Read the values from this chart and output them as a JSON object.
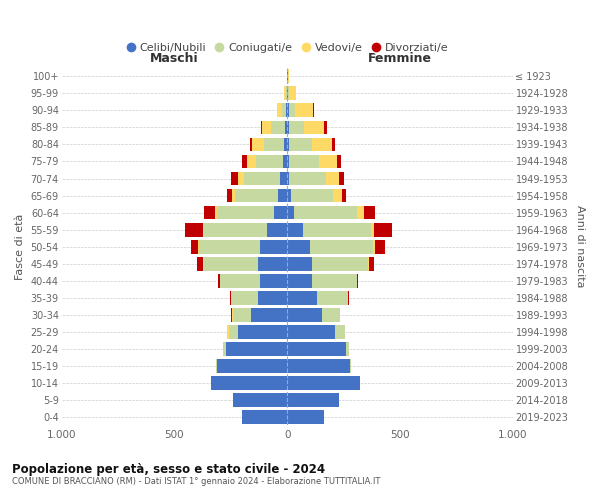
{
  "age_groups": [
    "0-4",
    "5-9",
    "10-14",
    "15-19",
    "20-24",
    "25-29",
    "30-34",
    "35-39",
    "40-44",
    "45-49",
    "50-54",
    "55-59",
    "60-64",
    "65-69",
    "70-74",
    "75-79",
    "80-84",
    "85-89",
    "90-94",
    "95-99",
    "100+"
  ],
  "birth_years": [
    "2019-2023",
    "2014-2018",
    "2009-2013",
    "2004-2008",
    "1999-2003",
    "1994-1998",
    "1989-1993",
    "1984-1988",
    "1979-1983",
    "1974-1978",
    "1969-1973",
    "1964-1968",
    "1959-1963",
    "1954-1958",
    "1949-1953",
    "1944-1948",
    "1939-1943",
    "1934-1938",
    "1929-1933",
    "1924-1928",
    "≤ 1923"
  ],
  "colors": {
    "celibi": "#4472C4",
    "coniugati": "#c5d9a0",
    "vedovi": "#FFD966",
    "divorziati": "#C00000"
  },
  "males": {
    "celibi": [
      200,
      240,
      340,
      310,
      270,
      220,
      160,
      130,
      120,
      130,
      120,
      90,
      60,
      40,
      30,
      20,
      15,
      10,
      5,
      2,
      0
    ],
    "coniugati": [
      0,
      0,
      0,
      5,
      15,
      40,
      80,
      120,
      180,
      240,
      270,
      280,
      250,
      190,
      160,
      120,
      90,
      60,
      20,
      5,
      0
    ],
    "vedovi": [
      0,
      0,
      0,
      0,
      0,
      5,
      5,
      0,
      0,
      5,
      5,
      5,
      10,
      15,
      30,
      40,
      50,
      40,
      20,
      5,
      0
    ],
    "divorziati": [
      0,
      0,
      0,
      0,
      0,
      0,
      5,
      5,
      5,
      25,
      30,
      80,
      50,
      20,
      30,
      20,
      10,
      5,
      0,
      0,
      0
    ]
  },
  "females": {
    "celibi": [
      165,
      230,
      325,
      280,
      260,
      210,
      155,
      130,
      110,
      110,
      100,
      70,
      30,
      15,
      10,
      10,
      10,
      10,
      10,
      5,
      2
    ],
    "coniugati": [
      0,
      0,
      0,
      5,
      15,
      45,
      80,
      140,
      200,
      250,
      280,
      300,
      280,
      190,
      160,
      130,
      100,
      65,
      25,
      5,
      0
    ],
    "vedovi": [
      0,
      0,
      0,
      0,
      0,
      0,
      0,
      0,
      0,
      5,
      10,
      15,
      30,
      40,
      60,
      80,
      90,
      90,
      80,
      30,
      5
    ],
    "divorziati": [
      0,
      0,
      0,
      0,
      0,
      0,
      0,
      5,
      5,
      20,
      45,
      80,
      50,
      15,
      20,
      20,
      10,
      10,
      5,
      0,
      0
    ]
  },
  "title": "Popolazione per età, sesso e stato civile - 2024",
  "subtitle": "COMUNE DI BRACCIANO (RM) - Dati ISTAT 1° gennaio 2024 - Elaborazione TUTTITALIA.IT",
  "xlabel_left": "Maschi",
  "xlabel_right": "Femmine",
  "ylabel_left": "Fasce di età",
  "ylabel_right": "Anni di nascita",
  "xlim": 1000,
  "legend_labels": [
    "Celibi/Nubili",
    "Coniugati/e",
    "Vedovi/e",
    "Divorziati/e"
  ]
}
